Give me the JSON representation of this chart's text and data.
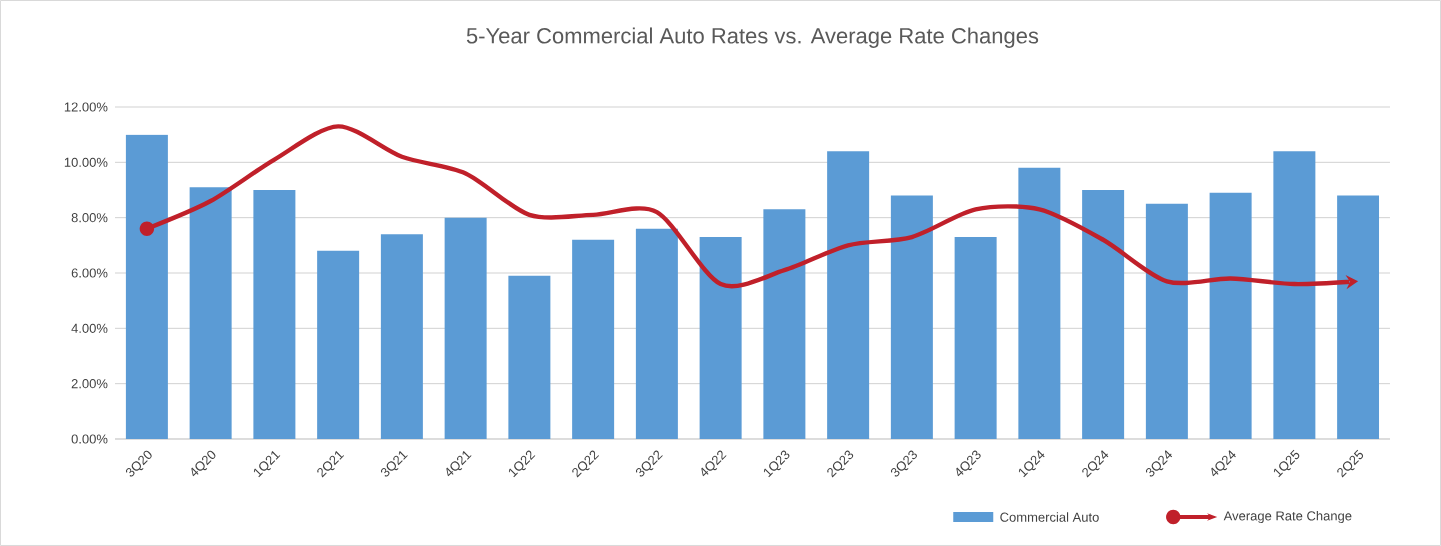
{
  "chart_data": {
    "type": "bar",
    "title": "5-Year Commercial Auto Rates vs. Average Rate Changes",
    "categories": [
      "3Q20",
      "4Q20",
      "1Q21",
      "2Q21",
      "3Q21",
      "4Q21",
      "1Q22",
      "2Q22",
      "3Q22",
      "4Q22",
      "1Q23",
      "2Q23",
      "3Q23",
      "4Q23",
      "1Q24",
      "2Q24",
      "3Q24",
      "4Q24",
      "1Q25",
      "2Q25"
    ],
    "series": [
      {
        "name": "Commercial Auto",
        "color": "#5b9bd5",
        "values": [
          11.0,
          9.1,
          9.0,
          6.8,
          7.4,
          8.0,
          5.9,
          7.2,
          7.6,
          7.3,
          8.3,
          10.4,
          8.8,
          7.3,
          9.8,
          9.0,
          8.5,
          8.9,
          10.4,
          8.8
        ]
      },
      {
        "name": "Average Rate Change",
        "type": "line",
        "color": "#c0202a",
        "values": [
          7.6,
          8.6,
          10.1,
          11.3,
          10.2,
          9.6,
          8.1,
          8.1,
          8.2,
          5.6,
          6.1,
          7.0,
          7.3,
          8.3,
          8.3,
          7.2,
          5.7,
          5.8,
          5.6,
          5.7
        ]
      }
    ],
    "ylim": [
      0,
      12
    ],
    "yticks": [
      {
        "value": 0,
        "label": "0.00%"
      },
      {
        "value": 2,
        "label": "2.00%"
      },
      {
        "value": 4,
        "label": "4.00%"
      },
      {
        "value": 6,
        "label": "6.00%"
      },
      {
        "value": 8,
        "label": "8.00%"
      },
      {
        "value": 10,
        "label": "10.00%"
      },
      {
        "value": 12,
        "label": "12.00%"
      }
    ],
    "grid": "y",
    "legend": "bottom right"
  }
}
